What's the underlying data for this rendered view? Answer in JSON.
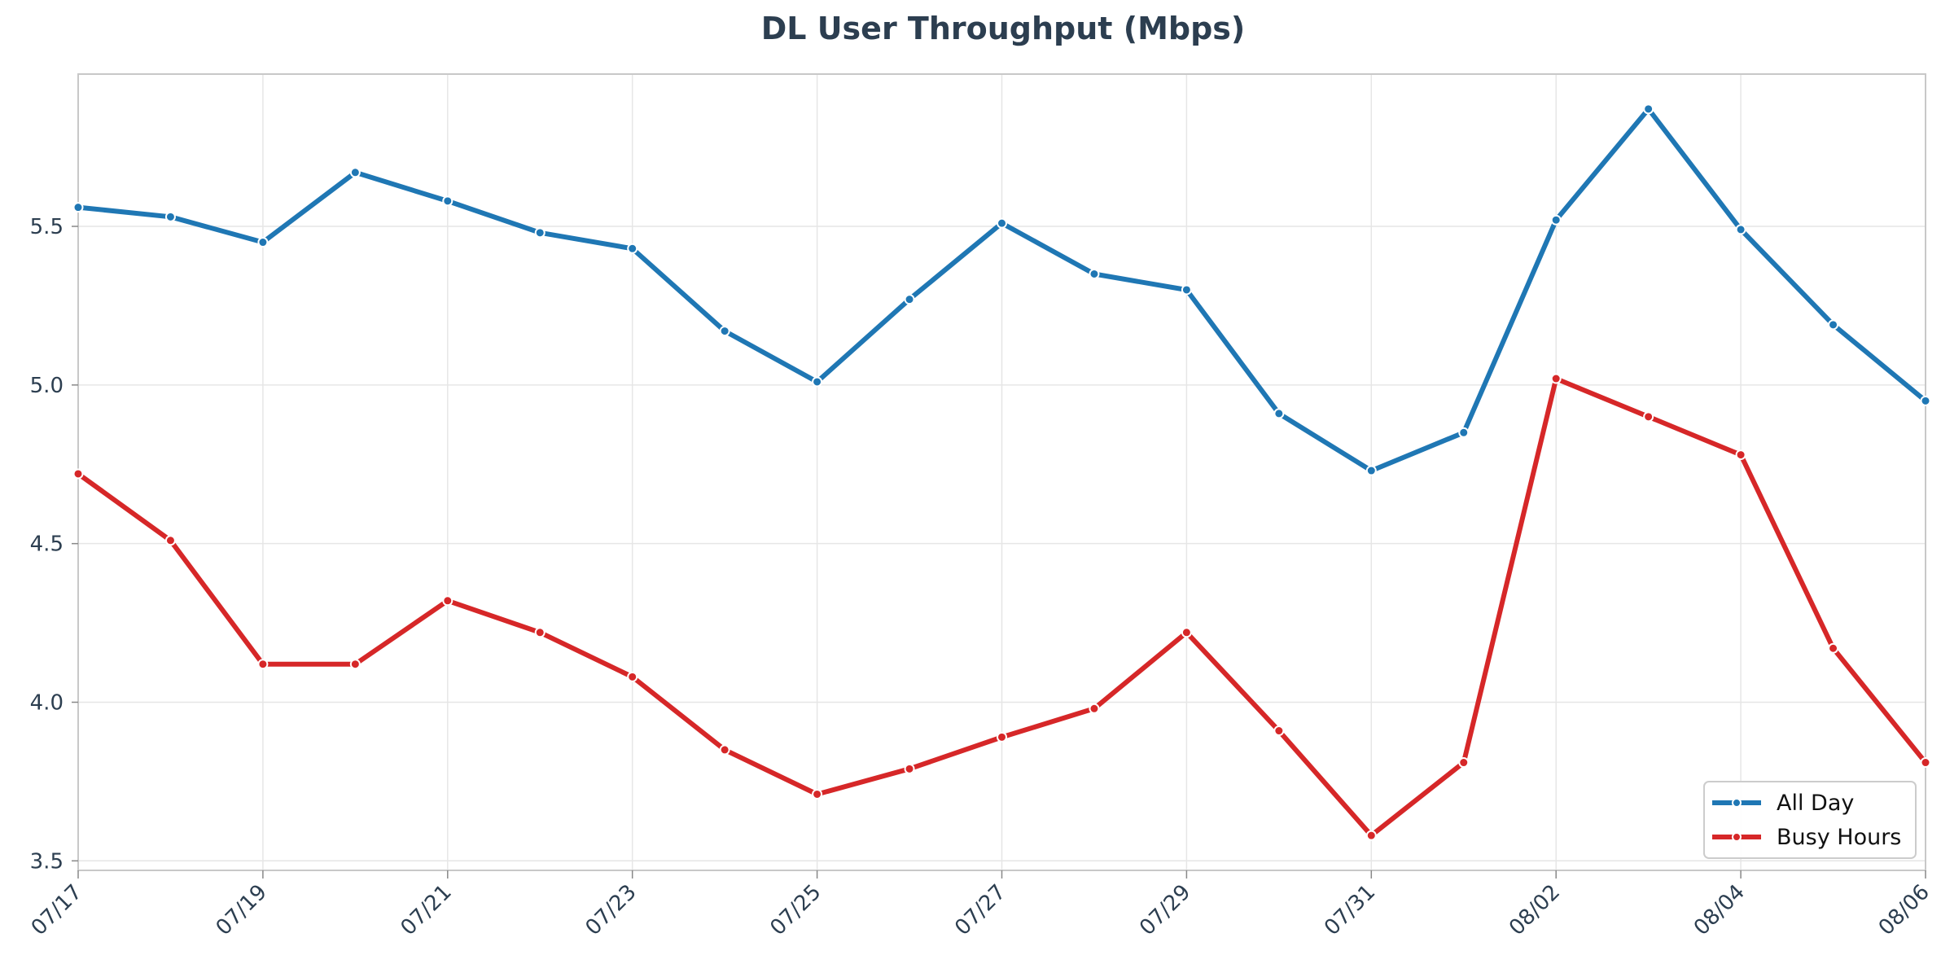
{
  "chart_data": {
    "type": "line",
    "title": "DL User Throughput (Mbps)",
    "xlabel": "",
    "ylabel": "",
    "x": [
      "07/17",
      "07/18",
      "07/19",
      "07/20",
      "07/21",
      "07/22",
      "07/23",
      "07/24",
      "07/25",
      "07/26",
      "07/27",
      "07/28",
      "07/29",
      "07/30",
      "07/31",
      "08/01",
      "08/02",
      "08/03",
      "08/04",
      "08/05",
      "08/06"
    ],
    "x_tick_labels": [
      "07/17",
      "07/19",
      "07/21",
      "07/23",
      "07/25",
      "07/27",
      "07/29",
      "07/31",
      "08/02",
      "08/04",
      "08/06"
    ],
    "ylim": [
      3.47,
      5.98
    ],
    "y_ticks": [
      3.5,
      4.0,
      4.5,
      5.0,
      5.5
    ],
    "y_tick_labels": [
      "3.5",
      "4.0",
      "4.5",
      "5.0",
      "5.5"
    ],
    "grid": true,
    "legend_position": "bottom-right",
    "series": [
      {
        "name": "All Day",
        "color": "#1f77b4",
        "values": [
          5.56,
          5.53,
          5.45,
          5.67,
          5.58,
          5.48,
          5.43,
          5.17,
          5.01,
          5.27,
          5.51,
          5.35,
          5.3,
          4.91,
          4.73,
          4.85,
          5.52,
          5.87,
          5.49,
          5.19,
          4.95
        ]
      },
      {
        "name": "Busy Hours",
        "color": "#d62728",
        "values": [
          4.72,
          4.51,
          4.12,
          4.12,
          4.32,
          4.22,
          4.08,
          3.85,
          3.71,
          3.79,
          3.89,
          3.98,
          4.22,
          3.91,
          3.58,
          3.81,
          5.02,
          4.9,
          4.78,
          4.17,
          3.81
        ]
      }
    ]
  }
}
